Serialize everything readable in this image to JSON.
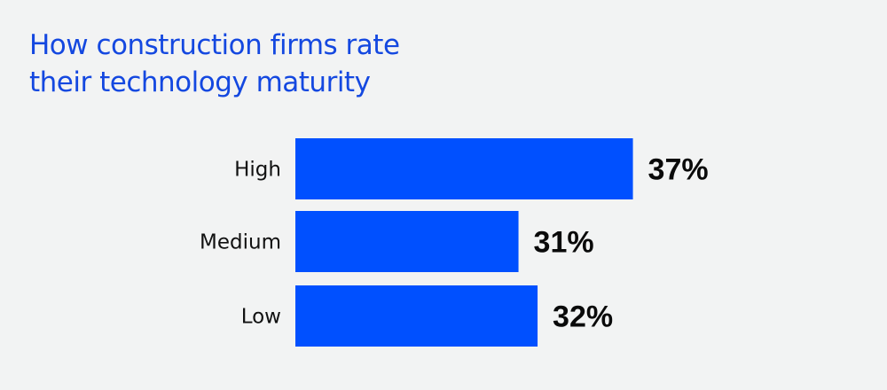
{
  "chart_data": {
    "type": "bar",
    "orientation": "horizontal",
    "title": "How construction firms rate their technology maturity",
    "title_lines": [
      "How construction firms rate",
      "their technology maturity"
    ],
    "categories": [
      "High",
      "Medium",
      "Low"
    ],
    "values": [
      37,
      31,
      32
    ],
    "value_labels": [
      "37%",
      "31%",
      "32%"
    ],
    "unit": "%",
    "xlabel": "",
    "ylabel": "",
    "grid": false,
    "legend": "none",
    "bar_color": "#0050ff",
    "title_color": "#1448e0"
  }
}
